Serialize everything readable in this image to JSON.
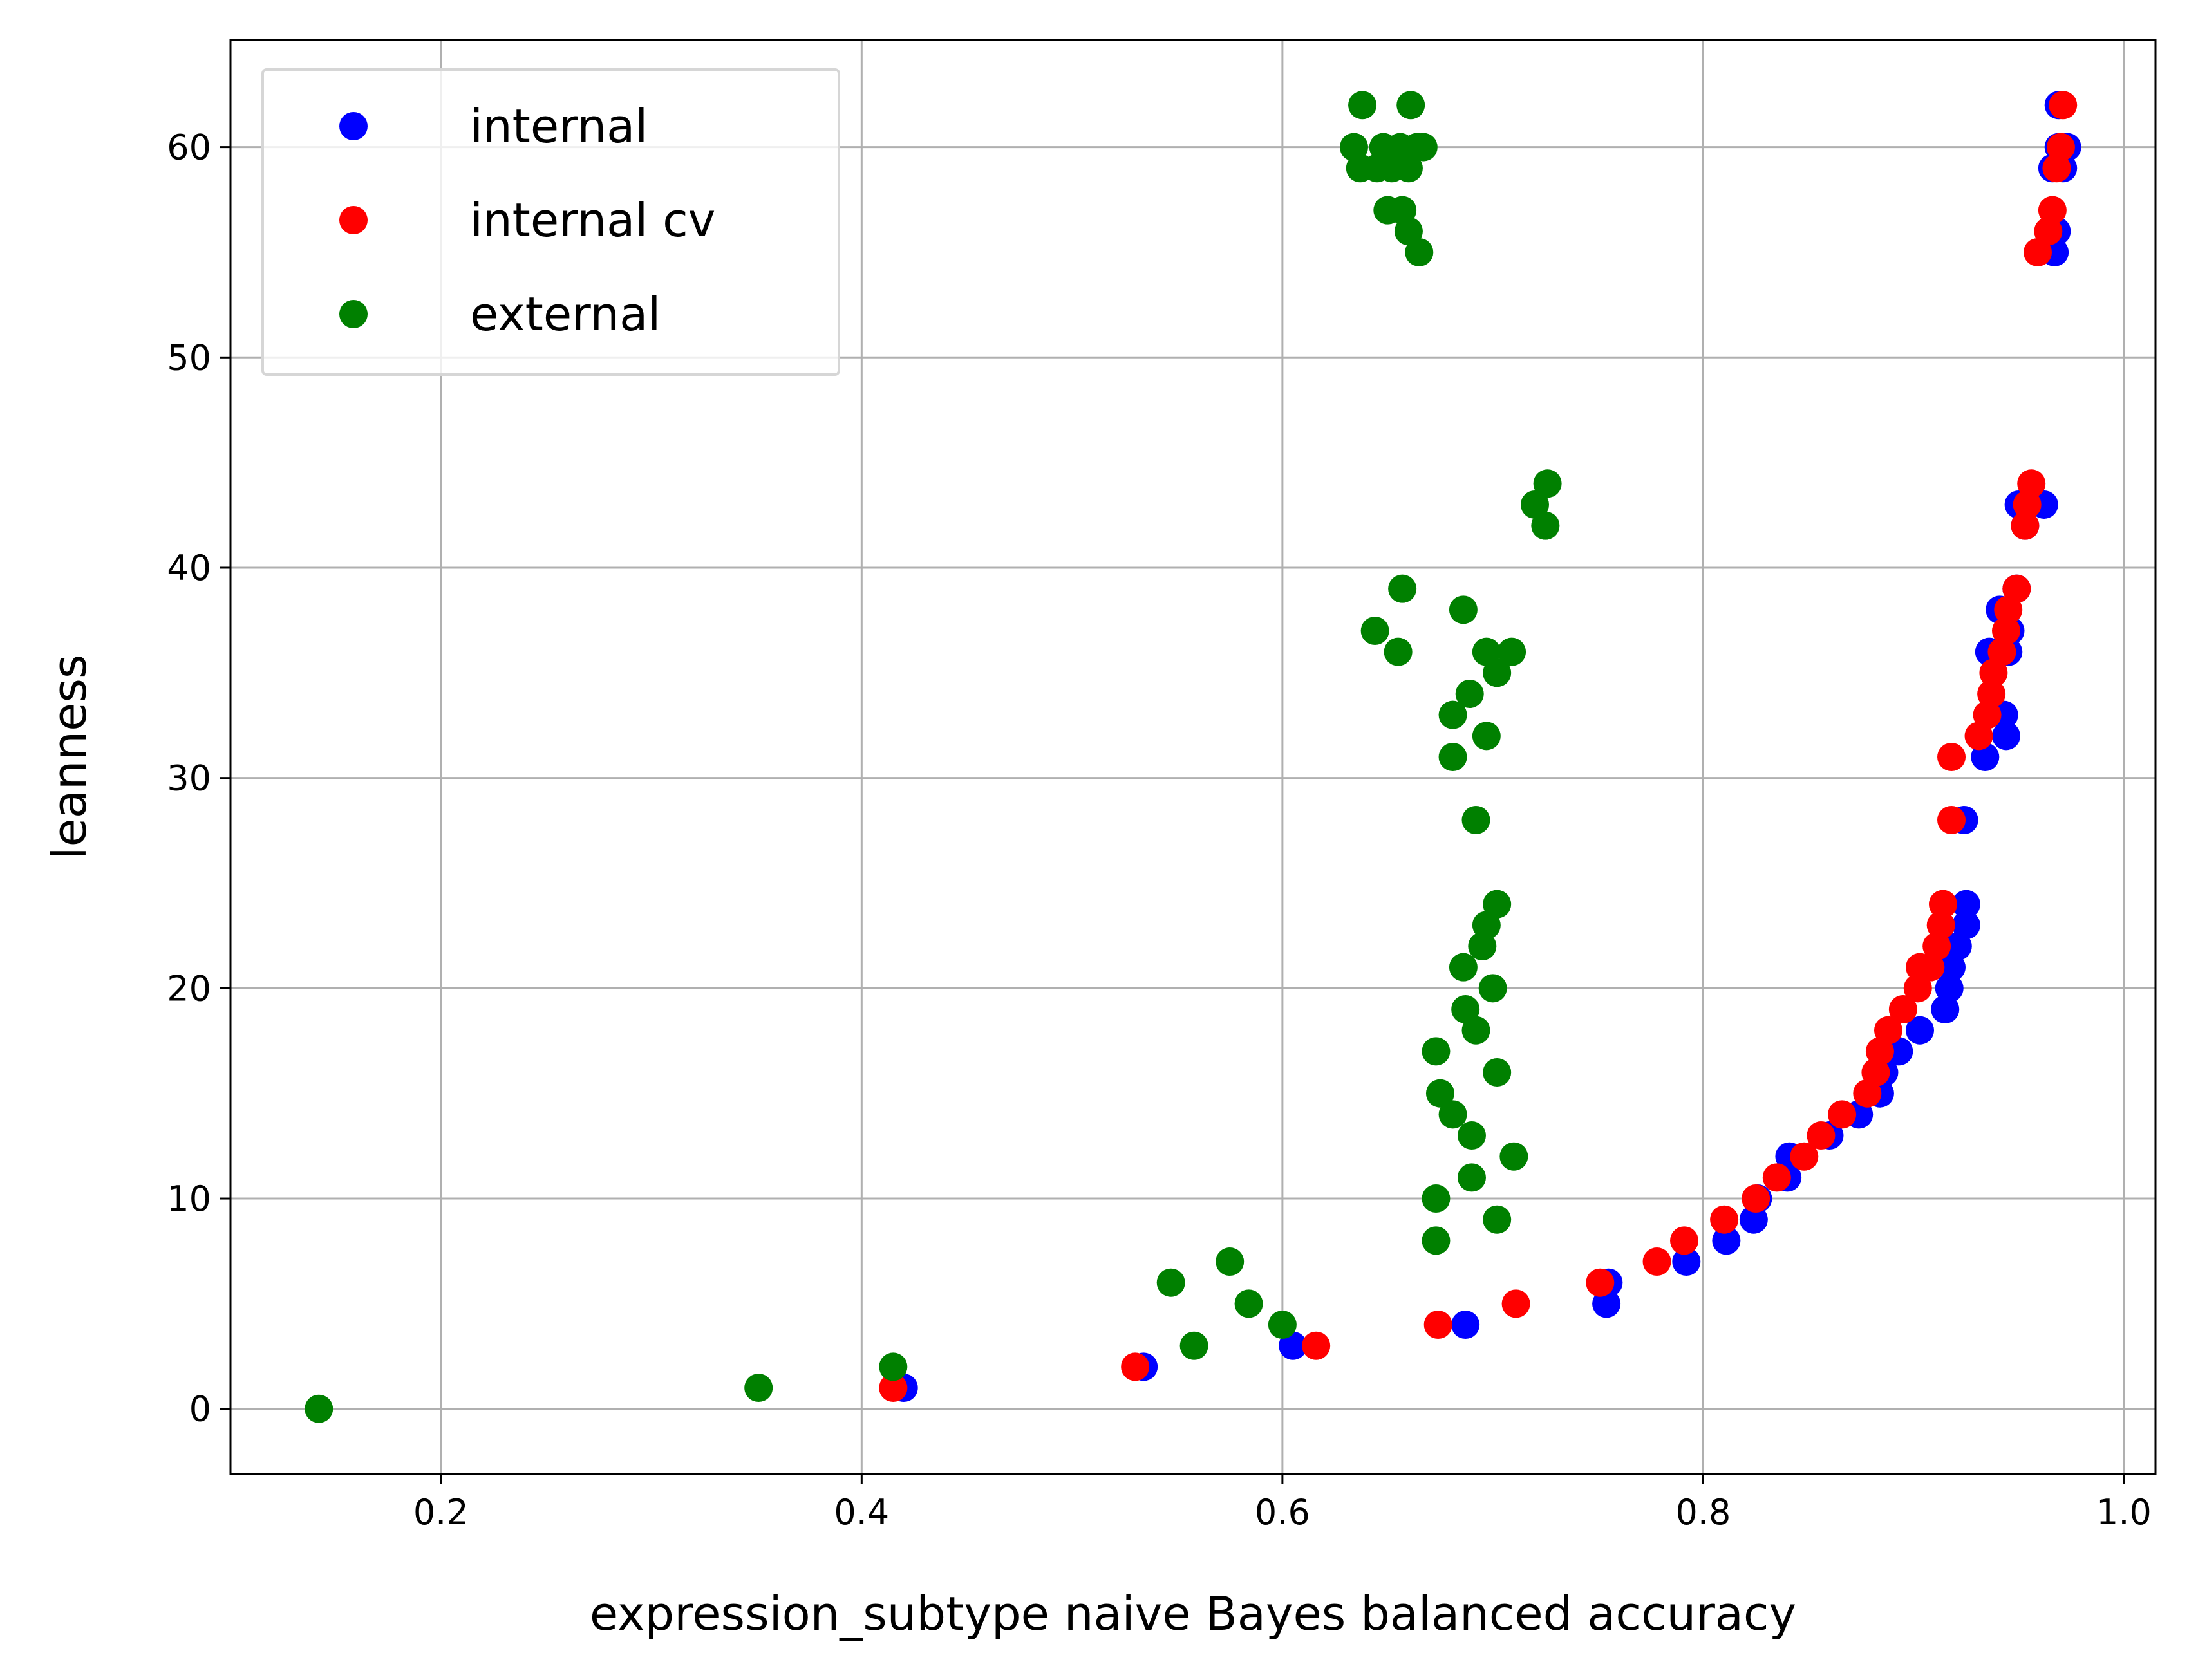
{
  "chart_data": {
    "type": "scatter",
    "xlabel": "expression_subtype naive Bayes balanced accuracy",
    "ylabel": "leanness",
    "xlim": [
      0.1,
      1.015
    ],
    "ylim": [
      -3.1,
      65.1
    ],
    "xticks": [
      0.2,
      0.4,
      0.6,
      0.8,
      1.0
    ],
    "xtick_labels": [
      "0.2",
      "0.4",
      "0.6",
      "0.8",
      "1.0"
    ],
    "yticks": [
      0,
      10,
      20,
      30,
      40,
      50,
      60
    ],
    "ytick_labels": [
      "0",
      "10",
      "20",
      "30",
      "40",
      "50",
      "60"
    ],
    "grid": true,
    "legend_position": "top-left",
    "series": [
      {
        "name": "internal",
        "color": "#0000ff",
        "points": [
          [
            0.42,
            1
          ],
          [
            0.534,
            2
          ],
          [
            0.605,
            3
          ],
          [
            0.687,
            4
          ],
          [
            0.754,
            5
          ],
          [
            0.755,
            6
          ],
          [
            0.792,
            7
          ],
          [
            0.811,
            8
          ],
          [
            0.824,
            9
          ],
          [
            0.826,
            10
          ],
          [
            0.84,
            11
          ],
          [
            0.841,
            12
          ],
          [
            0.86,
            13
          ],
          [
            0.874,
            14
          ],
          [
            0.884,
            15
          ],
          [
            0.886,
            16
          ],
          [
            0.893,
            17
          ],
          [
            0.903,
            18
          ],
          [
            0.915,
            19
          ],
          [
            0.917,
            20
          ],
          [
            0.918,
            21
          ],
          [
            0.921,
            22
          ],
          [
            0.925,
            23
          ],
          [
            0.925,
            24
          ],
          [
            0.924,
            28
          ],
          [
            0.934,
            31
          ],
          [
            0.944,
            32
          ],
          [
            0.943,
            33
          ],
          [
            0.945,
            36
          ],
          [
            0.936,
            36
          ],
          [
            0.946,
            37
          ],
          [
            0.941,
            38
          ],
          [
            0.949,
            39
          ],
          [
            0.953,
            42
          ],
          [
            0.95,
            43
          ],
          [
            0.962,
            43
          ],
          [
            0.967,
            55
          ],
          [
            0.968,
            56
          ],
          [
            0.966,
            59
          ],
          [
            0.971,
            59
          ],
          [
            0.969,
            60
          ],
          [
            0.973,
            60
          ],
          [
            0.969,
            62
          ]
        ]
      },
      {
        "name": "internal cv",
        "color": "#ff0000",
        "points": [
          [
            0.415,
            1
          ],
          [
            0.53,
            2
          ],
          [
            0.616,
            3
          ],
          [
            0.674,
            4
          ],
          [
            0.711,
            5
          ],
          [
            0.751,
            6
          ],
          [
            0.778,
            7
          ],
          [
            0.791,
            8
          ],
          [
            0.81,
            9
          ],
          [
            0.825,
            10
          ],
          [
            0.835,
            11
          ],
          [
            0.848,
            12
          ],
          [
            0.856,
            13
          ],
          [
            0.866,
            14
          ],
          [
            0.878,
            15
          ],
          [
            0.882,
            16
          ],
          [
            0.884,
            17
          ],
          [
            0.888,
            18
          ],
          [
            0.895,
            19
          ],
          [
            0.902,
            20
          ],
          [
            0.903,
            21
          ],
          [
            0.908,
            21
          ],
          [
            0.911,
            22
          ],
          [
            0.913,
            23
          ],
          [
            0.914,
            24
          ],
          [
            0.918,
            28
          ],
          [
            0.918,
            31
          ],
          [
            0.931,
            32
          ],
          [
            0.935,
            33
          ],
          [
            0.937,
            34
          ],
          [
            0.938,
            35
          ],
          [
            0.942,
            36
          ],
          [
            0.944,
            37
          ],
          [
            0.945,
            38
          ],
          [
            0.949,
            39
          ],
          [
            0.953,
            42
          ],
          [
            0.954,
            43
          ],
          [
            0.956,
            44
          ],
          [
            0.959,
            55
          ],
          [
            0.964,
            56
          ],
          [
            0.966,
            57
          ],
          [
            0.968,
            59
          ],
          [
            0.97,
            60
          ],
          [
            0.971,
            62
          ]
        ]
      },
      {
        "name": "external",
        "color": "#008000",
        "points": [
          [
            0.142,
            0
          ],
          [
            0.351,
            1
          ],
          [
            0.415,
            2
          ],
          [
            0.6,
            4
          ],
          [
            0.558,
            3
          ],
          [
            0.584,
            5
          ],
          [
            0.547,
            6
          ],
          [
            0.575,
            7
          ],
          [
            0.673,
            8
          ],
          [
            0.702,
            9
          ],
          [
            0.673,
            10
          ],
          [
            0.69,
            11
          ],
          [
            0.71,
            12
          ],
          [
            0.69,
            13
          ],
          [
            0.681,
            14
          ],
          [
            0.675,
            15
          ],
          [
            0.702,
            16
          ],
          [
            0.673,
            17
          ],
          [
            0.692,
            18
          ],
          [
            0.687,
            19
          ],
          [
            0.7,
            20
          ],
          [
            0.686,
            21
          ],
          [
            0.695,
            22
          ],
          [
            0.697,
            23
          ],
          [
            0.702,
            24
          ],
          [
            0.692,
            28
          ],
          [
            0.681,
            31
          ],
          [
            0.697,
            32
          ],
          [
            0.681,
            33
          ],
          [
            0.689,
            34
          ],
          [
            0.702,
            35
          ],
          [
            0.697,
            36
          ],
          [
            0.709,
            36
          ],
          [
            0.655,
            36
          ],
          [
            0.644,
            37
          ],
          [
            0.686,
            38
          ],
          [
            0.657,
            39
          ],
          [
            0.725,
            42
          ],
          [
            0.72,
            43
          ],
          [
            0.726,
            44
          ],
          [
            0.665,
            55
          ],
          [
            0.66,
            56
          ],
          [
            0.65,
            57
          ],
          [
            0.657,
            57
          ],
          [
            0.637,
            59
          ],
          [
            0.645,
            59
          ],
          [
            0.652,
            59
          ],
          [
            0.66,
            59
          ],
          [
            0.634,
            60
          ],
          [
            0.648,
            60
          ],
          [
            0.656,
            60
          ],
          [
            0.664,
            60
          ],
          [
            0.667,
            60
          ],
          [
            0.638,
            62
          ],
          [
            0.661,
            62
          ]
        ]
      }
    ]
  }
}
